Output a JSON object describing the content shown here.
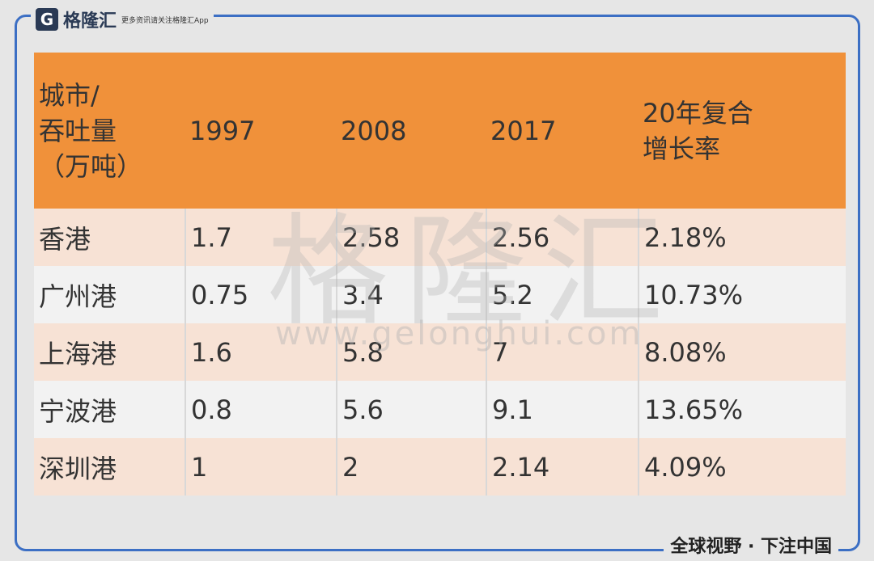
{
  "brand": {
    "name": "格隆汇",
    "tagline": "更多资讯请关注格隆汇App"
  },
  "watermark": {
    "name": "格隆汇",
    "url": "www.gelonghui.com"
  },
  "table": {
    "header": [
      [
        "城市/",
        "吞吐量",
        "（万吨）"
      ],
      [
        "1997"
      ],
      [
        "2008"
      ],
      [
        "2017"
      ],
      [
        "20年复合",
        "增长率"
      ]
    ],
    "rows": [
      [
        "香港",
        "1.7",
        "2.58",
        "2.56",
        "2.18%"
      ],
      [
        "广州港",
        "0.75",
        "3.4",
        "5.2",
        "10.73%"
      ],
      [
        "上海港",
        "1.6",
        "5.8",
        "7",
        "8.08%"
      ],
      [
        "宁波港",
        "0.8",
        "5.6",
        "9.1",
        "13.65%"
      ],
      [
        "深圳港",
        "1",
        "2",
        "2.14",
        "4.09%"
      ]
    ]
  },
  "footer": "全球视野 · 下注中国"
}
